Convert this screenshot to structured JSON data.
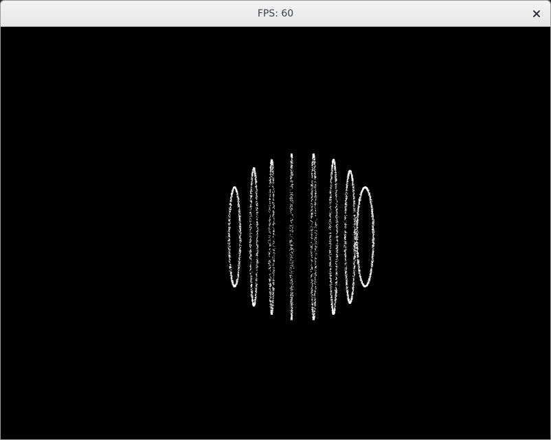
{
  "window": {
    "title": "FPS: 60",
    "close_icon": "close-icon"
  },
  "scene": {
    "background_color": "#000000",
    "particle_color": "#ffffff",
    "object": "particle-sphere",
    "ring_count": 8
  }
}
